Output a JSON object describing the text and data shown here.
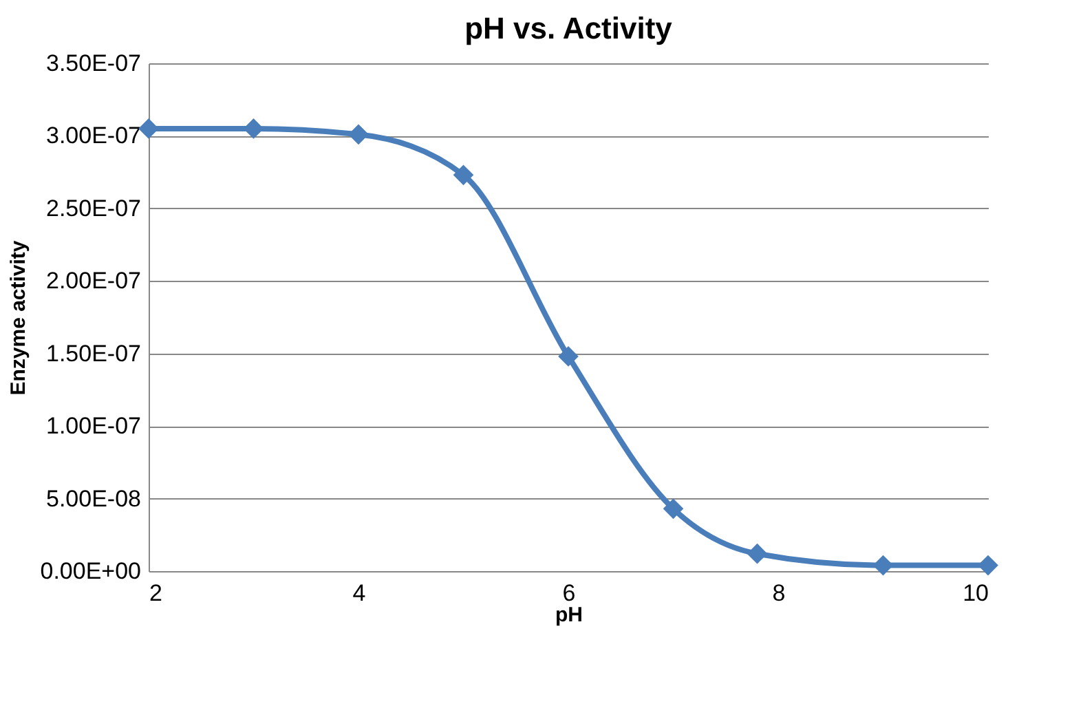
{
  "chart_data": {
    "type": "line",
    "title": "pH vs. Activity",
    "xlabel": "pH",
    "ylabel": "Enzyme activity",
    "x": [
      2,
      3,
      4,
      5,
      6,
      7,
      7.8,
      9,
      10
    ],
    "series": [
      {
        "color": "#4a7ebb",
        "values": [
          3.05e-07,
          3.05e-07,
          3.01e-07,
          2.73e-07,
          1.48e-07,
          4.3e-08,
          1.2e-08,
          4e-09,
          4e-09
        ]
      }
    ],
    "xlim": [
      2,
      10
    ],
    "xticks": [
      2,
      4,
      6,
      8,
      10
    ],
    "ylim": [
      0,
      3.5e-07
    ],
    "yticks": [
      {
        "value": 0,
        "label": "0.00E+00"
      },
      {
        "value": 5e-08,
        "label": "5.00E-08"
      },
      {
        "value": 1e-07,
        "label": "1.00E-07"
      },
      {
        "value": 1.5e-07,
        "label": "1.50E-07"
      },
      {
        "value": 2e-07,
        "label": "2.00E-07"
      },
      {
        "value": 2.5e-07,
        "label": "2.50E-07"
      },
      {
        "value": 3e-07,
        "label": "3.00E-07"
      },
      {
        "value": 3.5e-07,
        "label": "3.50E-07"
      }
    ],
    "grid": "y",
    "marker": "diamond",
    "line_style": "solid",
    "legend": false
  }
}
